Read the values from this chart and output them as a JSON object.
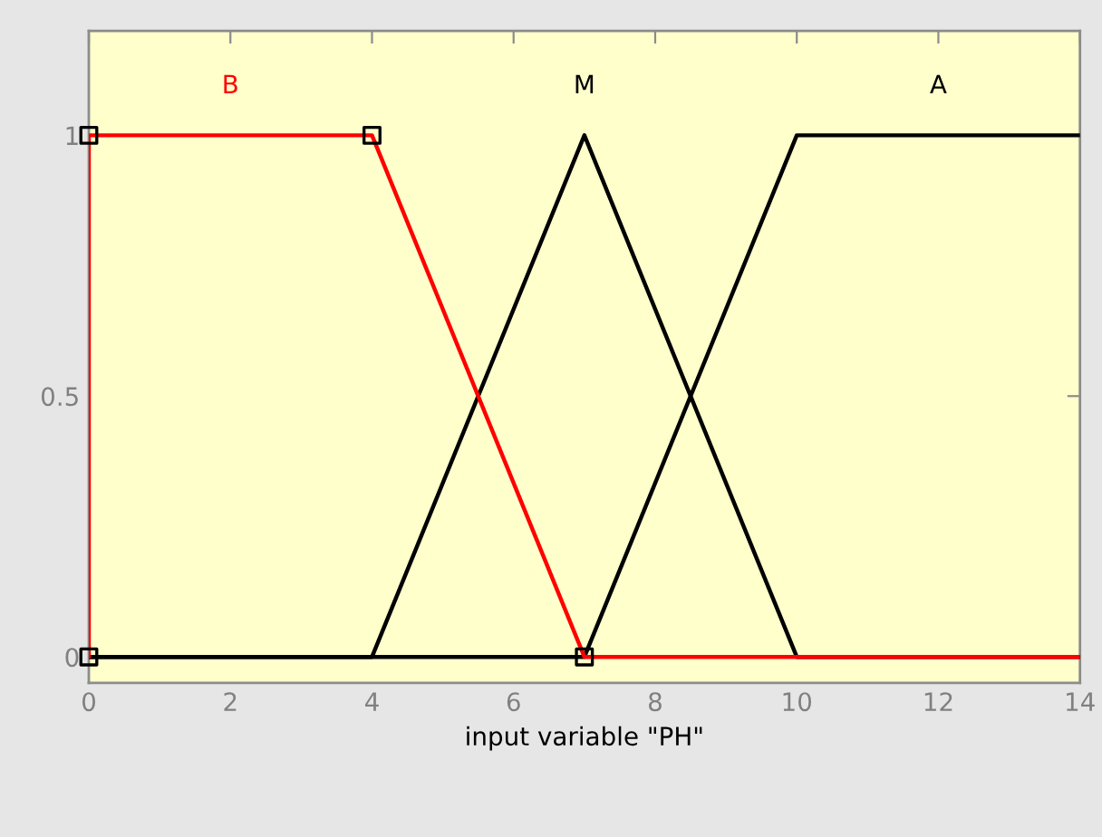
{
  "chart_data": {
    "type": "line",
    "xlabel": "input variable \"PH\"",
    "xlim": [
      0,
      14
    ],
    "xticks": [
      0,
      2,
      4,
      6,
      8,
      10,
      12,
      14
    ],
    "ylim": [
      -0.05,
      1.2
    ],
    "yticks": [
      0,
      0.5,
      1
    ],
    "series": [
      {
        "name": "B",
        "color": "#ff0000",
        "x": [
          0,
          0,
          4,
          7,
          14
        ],
        "values": [
          0,
          1,
          1,
          0,
          0
        ]
      },
      {
        "name": "M",
        "color": "#000000",
        "x": [
          0,
          4,
          7,
          10,
          14
        ],
        "values": [
          0,
          0,
          1,
          0,
          0
        ]
      },
      {
        "name": "A",
        "color": "#000000",
        "x": [
          0,
          7,
          10,
          14
        ],
        "values": [
          0,
          0,
          1,
          1
        ]
      },
      {
        "type": "scatter",
        "color": "#000000",
        "marker": "square",
        "x": [
          0,
          0,
          4,
          7
        ],
        "values": [
          0,
          1,
          1,
          0
        ]
      }
    ]
  }
}
